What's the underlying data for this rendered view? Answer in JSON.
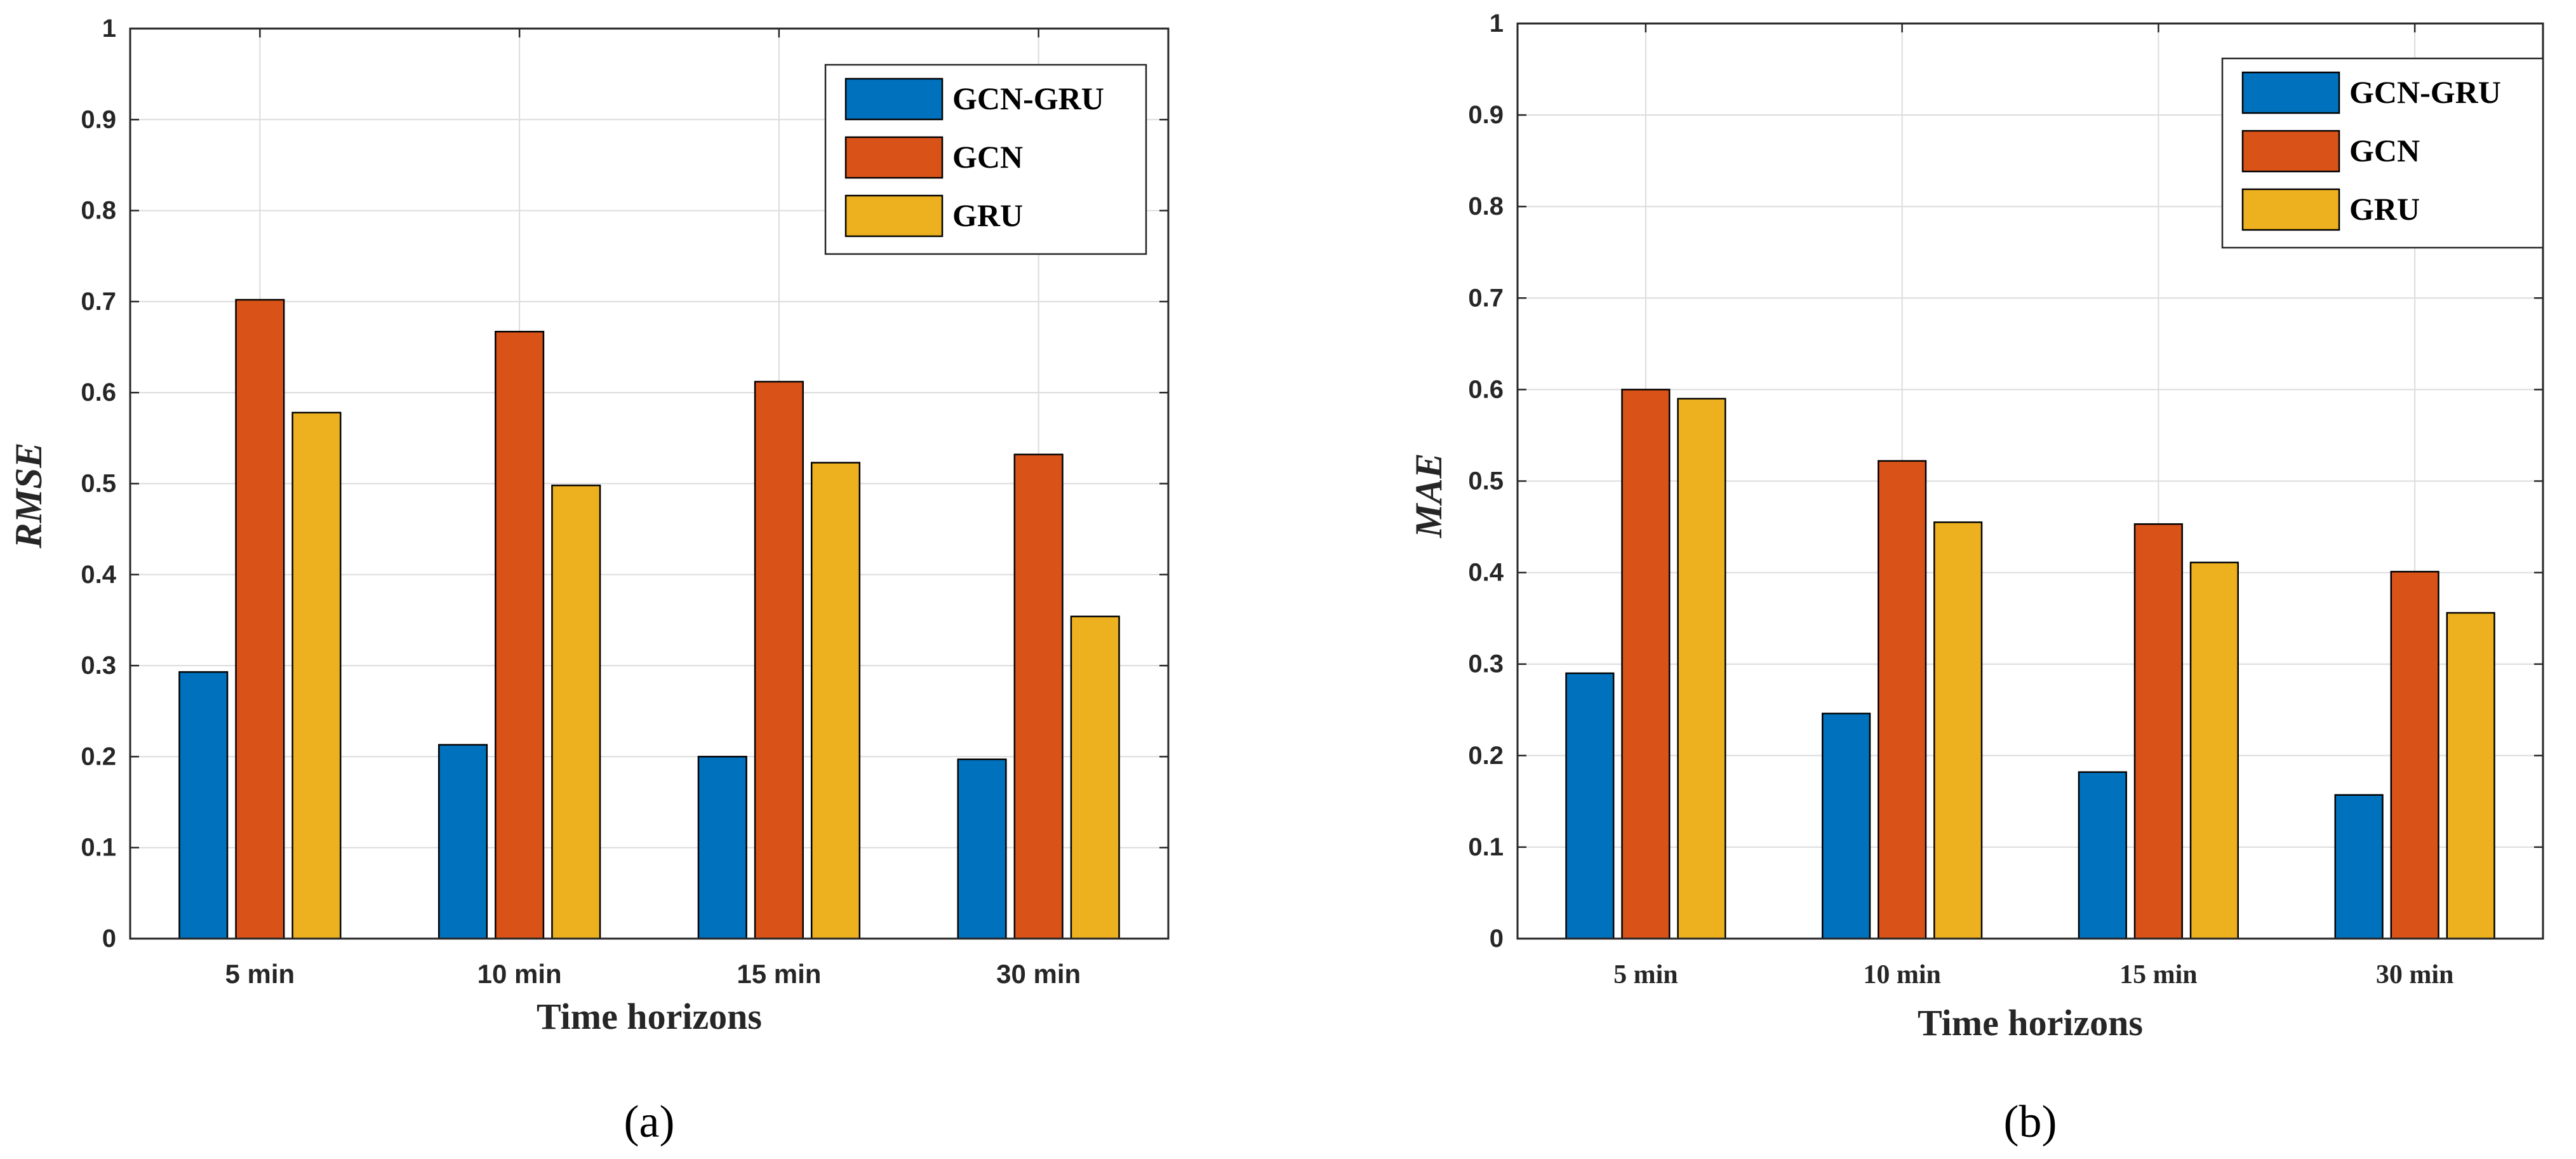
{
  "colors": {
    "series": [
      "#0072BD",
      "#D95319",
      "#EDB120"
    ],
    "grid": "#dcdcdc",
    "axis": "#262626",
    "bar_edge": "#000000"
  },
  "chart_data": [
    {
      "type": "bar",
      "panel_label": "(a)",
      "categories": [
        "5 min",
        "10 min",
        "15 min",
        "30 min"
      ],
      "series": [
        {
          "name": "GCN-GRU",
          "values": [
            0.293,
            0.213,
            0.2,
            0.197
          ]
        },
        {
          "name": "GCN",
          "values": [
            0.702,
            0.667,
            0.612,
            0.532
          ]
        },
        {
          "name": "GRU",
          "values": [
            0.578,
            0.498,
            0.523,
            0.354
          ]
        }
      ],
      "xlabel": "Time horizons",
      "ylabel": "RMSE",
      "ylim": [
        0,
        1
      ],
      "yticks": [
        "0",
        "0.1",
        "0.2",
        "0.3",
        "0.4",
        "0.5",
        "0.6",
        "0.7",
        "0.8",
        "0.9",
        "1"
      ],
      "grid": true,
      "legend": "top-right"
    },
    {
      "type": "bar",
      "panel_label": "(b)",
      "categories": [
        "5 min",
        "10 min",
        "15 min",
        "30 min"
      ],
      "series": [
        {
          "name": "GCN-GRU",
          "values": [
            0.29,
            0.246,
            0.182,
            0.157
          ]
        },
        {
          "name": "GCN",
          "values": [
            0.6,
            0.522,
            0.453,
            0.401
          ]
        },
        {
          "name": "GRU",
          "values": [
            0.59,
            0.455,
            0.411,
            0.356
          ]
        }
      ],
      "xlabel": "Time horizons",
      "ylabel": "MAE",
      "ylim": [
        0,
        1
      ],
      "yticks": [
        "0",
        "0.1",
        "0.2",
        "0.3",
        "0.4",
        "0.5",
        "0.6",
        "0.7",
        "0.8",
        "0.9",
        "1"
      ],
      "grid": true,
      "legend": "top-right"
    }
  ]
}
